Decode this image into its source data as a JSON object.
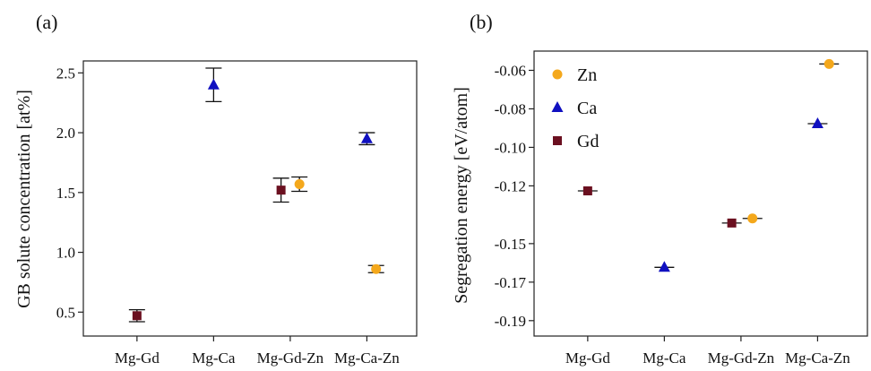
{
  "colors": {
    "Gd": "#6b1020",
    "Ca": "#1010c0",
    "Zn": "#f4a81c"
  },
  "chart_data": [
    {
      "type": "scatter",
      "panel_label": "(a)",
      "title": "",
      "xlabel": "",
      "ylabel": "GB solute concentration [at%]",
      "categories": [
        "Mg-Gd",
        "Mg-Ca",
        "Mg-Gd-Zn",
        "Mg-Ca-Zn"
      ],
      "ylim": [
        0.3,
        2.6
      ],
      "yticks": [
        0.5,
        1.0,
        1.5,
        2.0,
        2.5
      ],
      "ytick_labels": [
        "0.5",
        "1.0",
        "1.5",
        "2.0",
        "2.5"
      ],
      "grid": false,
      "legend": null,
      "series": [
        {
          "name": "Gd",
          "marker": "square",
          "points": [
            {
              "category": "Mg-Gd",
              "offset": 0,
              "y": 0.47,
              "err": 0.05
            },
            {
              "category": "Mg-Gd-Zn",
              "offset": -0.12,
              "y": 1.52,
              "err": 0.1
            }
          ]
        },
        {
          "name": "Ca",
          "marker": "triangle",
          "points": [
            {
              "category": "Mg-Ca",
              "offset": 0,
              "y": 2.4,
              "err": 0.14
            },
            {
              "category": "Mg-Ca-Zn",
              "offset": 0,
              "y": 1.95,
              "err": 0.05
            }
          ]
        },
        {
          "name": "Zn",
          "marker": "circle",
          "points": [
            {
              "category": "Mg-Gd-Zn",
              "offset": 0.12,
              "y": 1.57,
              "err": 0.06
            },
            {
              "category": "Mg-Ca-Zn",
              "offset": 0.12,
              "y": 0.86,
              "err": 0.03
            }
          ]
        }
      ]
    },
    {
      "type": "scatter",
      "panel_label": "(b)",
      "title": "",
      "xlabel": "",
      "ylabel": "Segregation energy [eV/atom]",
      "categories": [
        "Mg-Gd",
        "Mg-Ca",
        "Mg-Gd-Zn",
        "Mg-Ca-Zn"
      ],
      "ylim": [
        -0.198,
        -0.05
      ],
      "yticks": [
        -0.06,
        -0.08,
        -0.1,
        -0.12,
        -0.15,
        -0.17,
        -0.19
      ],
      "ytick_labels": [
        "-0.06",
        "-0.08",
        "-0.10",
        "-0.12",
        "-0.15",
        "-0.17",
        "-0.19"
      ],
      "grid": false,
      "legend": {
        "placement": "top-left",
        "entries": [
          "Zn",
          "Ca",
          "Gd"
        ]
      },
      "series": [
        {
          "name": "Zn",
          "marker": "circle",
          "points": [
            {
              "category": "Mg-Gd-Zn",
              "offset": 0.15,
              "y": -0.1369,
              "err": 0
            },
            {
              "category": "Mg-Ca-Zn",
              "offset": 0.15,
              "y": -0.0567,
              "err": 0
            }
          ]
        },
        {
          "name": "Ca",
          "marker": "triangle",
          "points": [
            {
              "category": "Mg-Ca",
              "offset": 0,
              "y": -0.1623,
              "err": 0
            },
            {
              "category": "Mg-Ca-Zn",
              "offset": 0,
              "y": -0.0877,
              "err": 0
            }
          ]
        },
        {
          "name": "Gd",
          "marker": "square",
          "points": [
            {
              "category": "Mg-Gd",
              "offset": 0,
              "y": -0.1226,
              "err": 0
            },
            {
              "category": "Mg-Gd-Zn",
              "offset": -0.12,
              "y": -0.1393,
              "err": 0
            }
          ]
        }
      ]
    }
  ]
}
